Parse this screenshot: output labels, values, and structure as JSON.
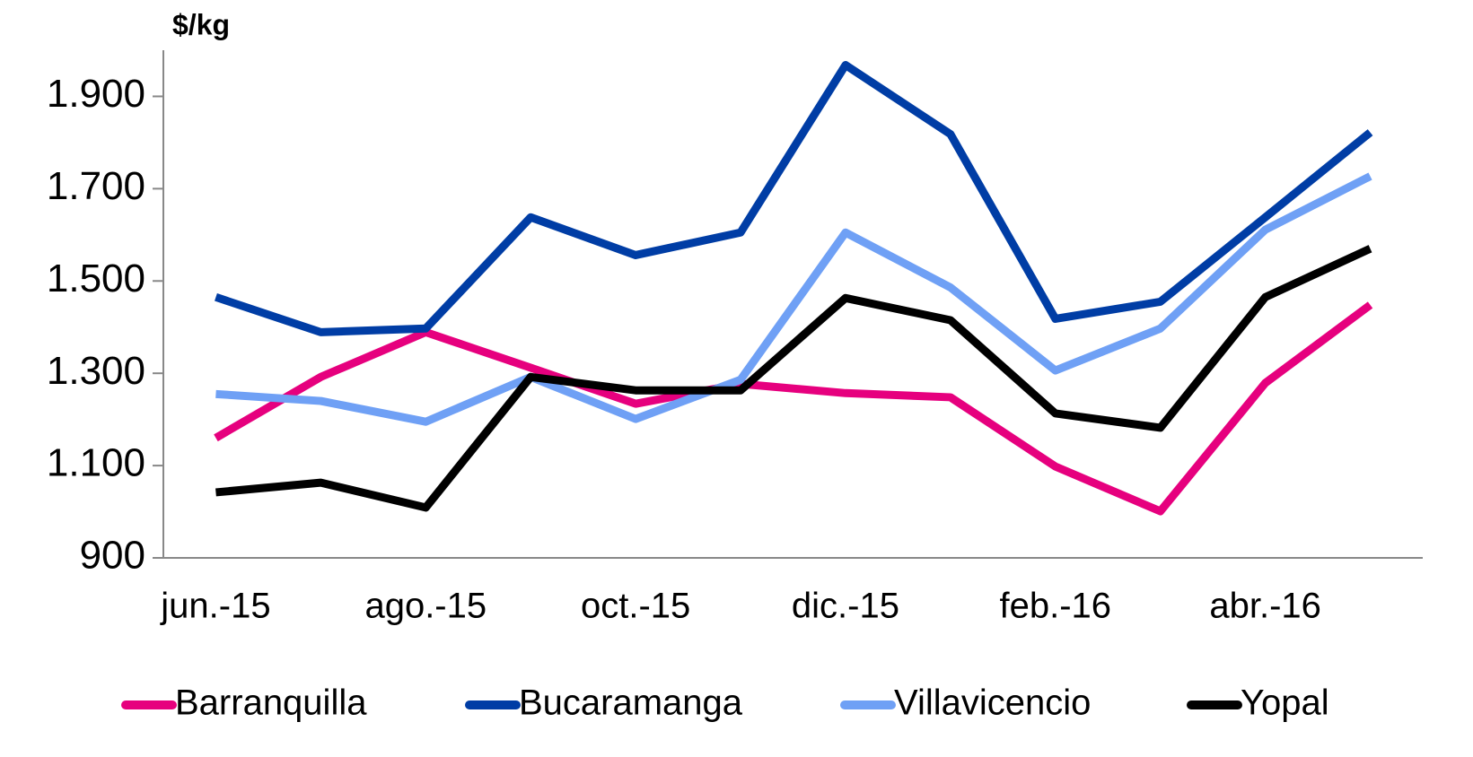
{
  "chart_data": {
    "type": "line",
    "y_axis_label": "$/kg",
    "categories": [
      "jun.-15",
      null,
      "ago.-15",
      null,
      "oct.-15",
      null,
      "dic.-15",
      null,
      "feb.-16",
      null,
      "abr.-16",
      null
    ],
    "series": [
      {
        "name": "Barranquilla",
        "color": "#e6007e",
        "values": [
          1160,
          1292,
          1389,
          1312,
          1234,
          1277,
          1257,
          1248,
          1098,
          1001,
          1279,
          1448
        ]
      },
      {
        "name": "Bucaramanga",
        "color": "#003da5",
        "values": [
          1465,
          1389,
          1397,
          1638,
          1556,
          1605,
          1968,
          1818,
          1418,
          1455,
          1638,
          1822
        ]
      },
      {
        "name": "Villavicencio",
        "color": "#6fa0f5",
        "values": [
          1255,
          1240,
          1195,
          1292,
          1201,
          1286,
          1605,
          1486,
          1306,
          1397,
          1611,
          1727
        ]
      },
      {
        "name": "Yopal",
        "color": "#000000",
        "values": [
          1042,
          1063,
          1009,
          1292,
          1263,
          1263,
          1463,
          1415,
          1213,
          1182,
          1465,
          1570
        ]
      }
    ],
    "ylim": [
      900,
      2000
    ],
    "yticks": [
      900,
      {
        "value": 1100,
        "label": "1.100"
      },
      {
        "value": 1300,
        "label": "1.300"
      },
      {
        "value": 1500,
        "label": "1.500"
      },
      {
        "value": 1700,
        "label": "1.700"
      },
      {
        "value": 1900,
        "label": "1.900"
      }
    ],
    "grid": false,
    "legend": "bottom"
  }
}
